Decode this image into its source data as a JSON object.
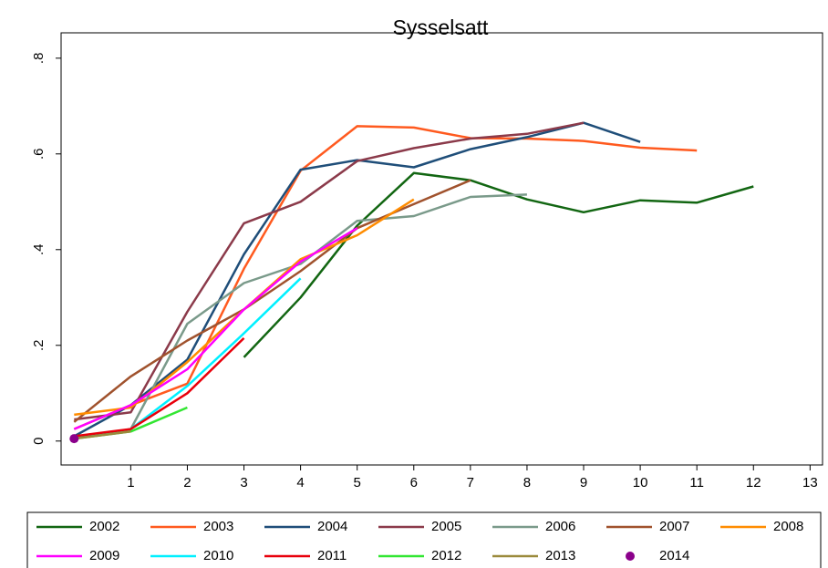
{
  "chart_data": {
    "type": "line",
    "title": "Sysselsatt",
    "x": [
      0,
      1,
      2,
      3,
      4,
      5,
      6,
      7,
      8,
      9,
      10,
      11,
      12
    ],
    "xlim": [
      -0.23,
      13.22
    ],
    "xticks": [
      1,
      2,
      3,
      4,
      5,
      6,
      7,
      8,
      9,
      10,
      11,
      12,
      13
    ],
    "ylim": [
      -0.05,
      0.853
    ],
    "yticks": [
      0,
      {
        "value": 0.2,
        "label": ".2"
      },
      {
        "value": 0.4,
        "label": ".4"
      },
      {
        "value": 0.6,
        "label": ".6"
      },
      {
        "value": 0.8,
        "label": ".8"
      }
    ],
    "legend": "bottom",
    "series": [
      {
        "name": "2002",
        "color": "#126612",
        "values": [
          null,
          null,
          null,
          0.175,
          0.3,
          0.45,
          0.56,
          0.545,
          0.505,
          0.478,
          0.503,
          0.498,
          0.532
        ]
      },
      {
        "name": "2003",
        "color": "#ff5a1f",
        "values": [
          0.025,
          0.075,
          0.12,
          0.36,
          0.565,
          0.658,
          0.655,
          0.633,
          0.632,
          0.627,
          0.613,
          0.607,
          null
        ]
      },
      {
        "name": "2004",
        "color": "#1f4e79",
        "values": [
          0.01,
          0.075,
          0.17,
          0.39,
          0.567,
          0.587,
          0.572,
          0.61,
          0.635,
          0.665,
          0.625,
          null,
          null
        ]
      },
      {
        "name": "2005",
        "color": "#8b3a4a",
        "values": [
          0.045,
          0.06,
          0.27,
          0.455,
          0.5,
          0.585,
          0.612,
          0.632,
          0.642,
          0.665,
          null,
          null,
          null
        ]
      },
      {
        "name": "2006",
        "color": "#7a9a8a",
        "values": [
          0.005,
          0.025,
          0.245,
          0.33,
          0.37,
          0.46,
          0.47,
          0.51,
          0.515,
          null,
          null,
          null,
          null
        ]
      },
      {
        "name": "2007",
        "color": "#a0522d",
        "values": [
          0.04,
          0.135,
          0.21,
          0.275,
          0.355,
          0.445,
          0.495,
          0.545,
          null,
          null,
          null,
          null,
          null
        ]
      },
      {
        "name": "2008",
        "color": "#ff8c00",
        "values": [
          0.055,
          0.07,
          0.165,
          0.275,
          0.38,
          0.43,
          0.505,
          null,
          null,
          null,
          null,
          null,
          null
        ]
      },
      {
        "name": "2009",
        "color": "#ff00ff",
        "values": [
          0.025,
          0.075,
          0.15,
          0.275,
          0.375,
          0.445,
          null,
          null,
          null,
          null,
          null,
          null,
          null
        ]
      },
      {
        "name": "2010",
        "color": "#00f0ff",
        "values": [
          0.005,
          0.025,
          0.115,
          0.225,
          0.34,
          null,
          null,
          null,
          null,
          null,
          null,
          null,
          null
        ]
      },
      {
        "name": "2011",
        "color": "#e8000b",
        "values": [
          0.01,
          0.025,
          0.1,
          0.215,
          null,
          null,
          null,
          null,
          null,
          null,
          null,
          null,
          null
        ]
      },
      {
        "name": "2012",
        "color": "#32e632",
        "values": [
          0.005,
          0.02,
          0.07,
          null,
          null,
          null,
          null,
          null,
          null,
          null,
          null,
          null,
          null
        ]
      },
      {
        "name": "2013",
        "color": "#9b8a3c",
        "values": [
          0.005,
          0.02,
          null,
          null,
          null,
          null,
          null,
          null,
          null,
          null,
          null,
          null,
          null
        ]
      },
      {
        "name": "2014",
        "color": "#8b008b",
        "style": "marker",
        "values": [
          0.005,
          null,
          null,
          null,
          null,
          null,
          null,
          null,
          null,
          null,
          null,
          null,
          null
        ]
      }
    ]
  }
}
